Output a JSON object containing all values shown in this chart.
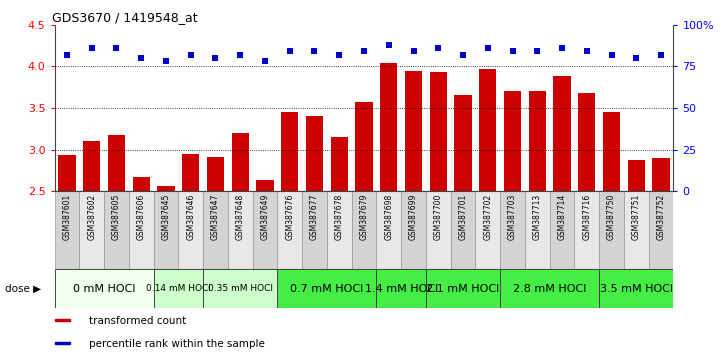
{
  "title": "GDS3670 / 1419548_at",
  "samples": [
    "GSM387601",
    "GSM387602",
    "GSM387605",
    "GSM387606",
    "GSM387645",
    "GSM387646",
    "GSM387647",
    "GSM387648",
    "GSM387649",
    "GSM387676",
    "GSM387677",
    "GSM387678",
    "GSM387679",
    "GSM387698",
    "GSM387699",
    "GSM387700",
    "GSM387701",
    "GSM387702",
    "GSM387703",
    "GSM387713",
    "GSM387714",
    "GSM387716",
    "GSM387750",
    "GSM387751",
    "GSM387752"
  ],
  "transformed_counts": [
    2.94,
    3.1,
    3.17,
    2.67,
    2.56,
    2.95,
    2.91,
    3.2,
    2.63,
    3.45,
    3.4,
    3.15,
    3.57,
    4.04,
    3.94,
    3.93,
    3.65,
    3.97,
    3.7,
    3.7,
    3.88,
    3.68,
    3.45,
    2.88,
    2.9
  ],
  "percentile_ranks": [
    82,
    86,
    86,
    80,
    78,
    82,
    80,
    82,
    78,
    84,
    84,
    82,
    84,
    88,
    84,
    86,
    82,
    86,
    84,
    84,
    86,
    84,
    82,
    80,
    82
  ],
  "dose_groups": [
    {
      "label": "0 mM HOCl",
      "start": 0,
      "end": 4,
      "color": "#f0fff0",
      "fontsize": 8,
      "bold": false
    },
    {
      "label": "0.14 mM HOCl",
      "start": 4,
      "end": 6,
      "color": "#ccffcc",
      "fontsize": 6.5,
      "bold": false
    },
    {
      "label": "0.35 mM HOCl",
      "start": 6,
      "end": 9,
      "color": "#ccffcc",
      "fontsize": 6.5,
      "bold": false
    },
    {
      "label": "0.7 mM HOCl",
      "start": 9,
      "end": 13,
      "color": "#44ee44",
      "fontsize": 8,
      "bold": false
    },
    {
      "label": "1.4 mM HOCl",
      "start": 13,
      "end": 15,
      "color": "#44ee44",
      "fontsize": 8,
      "bold": false
    },
    {
      "label": "2.1 mM HOCl",
      "start": 15,
      "end": 18,
      "color": "#44ee44",
      "fontsize": 8,
      "bold": false
    },
    {
      "label": "2.8 mM HOCl",
      "start": 18,
      "end": 22,
      "color": "#44ee44",
      "fontsize": 8,
      "bold": false
    },
    {
      "label": "3.5 mM HOCl",
      "start": 22,
      "end": 25,
      "color": "#44ee44",
      "fontsize": 8,
      "bold": false
    }
  ],
  "ylim_left": [
    2.5,
    4.5
  ],
  "ylim_right": [
    0,
    100
  ],
  "bar_color": "#cc0000",
  "dot_color": "#0000cc",
  "bar_width": 0.7,
  "yticks_left": [
    2.5,
    3.0,
    3.5,
    4.0,
    4.5
  ],
  "yticks_right": [
    0,
    25,
    50,
    75,
    100
  ],
  "ytick_labels_right": [
    "0",
    "25",
    "50",
    "75",
    "100%"
  ],
  "grid_yticks": [
    3.0,
    3.5,
    4.0
  ],
  "background_color": "#ffffff",
  "col_colors": [
    "#d4d4d4",
    "#e8e8e8"
  ]
}
